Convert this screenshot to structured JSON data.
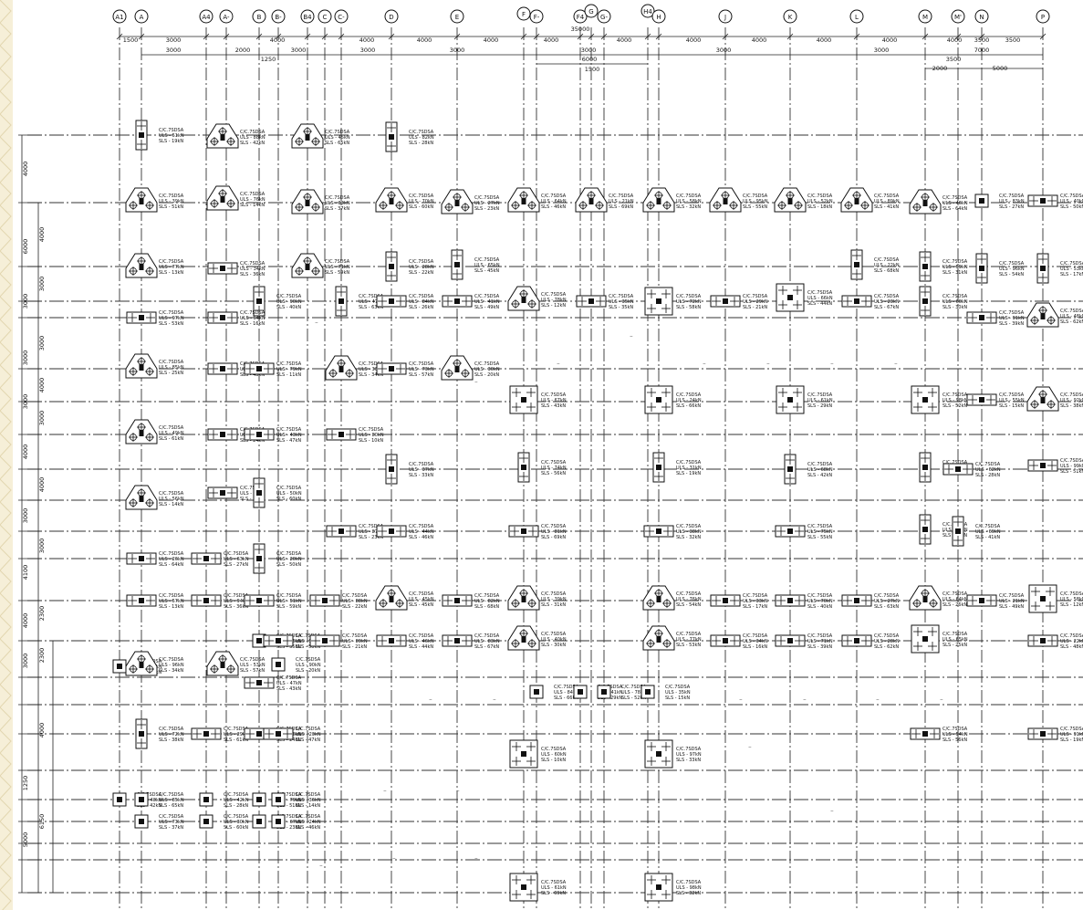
{
  "grid": {
    "columns": [
      "A1",
      "A",
      "A4",
      "A-",
      "B",
      "B-",
      "B4",
      "C",
      "C-",
      "D",
      "E",
      "F",
      "F-",
      "F4",
      "G",
      "G-",
      "H4",
      "H",
      "J",
      "K",
      "L",
      "M",
      "M'",
      "N",
      "P"
    ]
  },
  "dimensions": {
    "top_row1": [
      "1500",
      "3000",
      "4000",
      "4000",
      "4000",
      "4000",
      "4000",
      "4000",
      "4000",
      "4000",
      "4000",
      "4000",
      "4000",
      "3500",
      "3500"
    ],
    "top_row2": [
      "3000",
      "2000",
      "3000",
      "3000",
      "3000",
      "3000",
      "3000",
      "3000",
      "7000"
    ],
    "top_misc": [
      "35000",
      "1250",
      "3500",
      "6000",
      "1500",
      "2000",
      "5000"
    ],
    "left": [
      "4000",
      "4000",
      "6000",
      "3000",
      "3000",
      "3000",
      "3000",
      "4000",
      "3000",
      "3000",
      "4000",
      "4000",
      "3000",
      "3000",
      "4100",
      "2300",
      "4000",
      "2300",
      "3000",
      "4000",
      "1250",
      "6150",
      "5000"
    ]
  },
  "footing_labels": {
    "code": "C/C.7SDSA",
    "uls_prefix": "ULS - ",
    "sls_prefix": "SLS - ",
    "unit": "kN"
  }
}
